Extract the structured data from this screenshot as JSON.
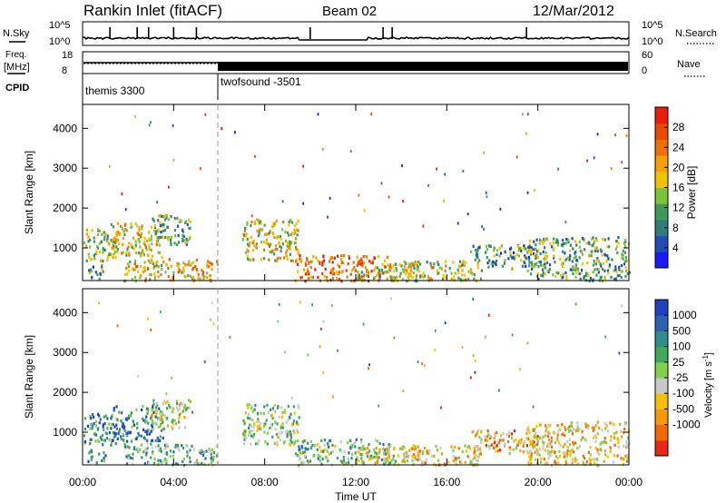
{
  "header": {
    "title": "Rankin Inlet (fitACF)",
    "beam": "Beam 02",
    "date": "12/Mar/2012"
  },
  "panels": {
    "nsky": {
      "left_label": "N.Sky",
      "right_label": "N.Search",
      "left_ticks": [
        "10^5",
        "10^0"
      ],
      "right_ticks": [
        "10^5",
        "10^0"
      ]
    },
    "freq": {
      "left_label_line1": "Freq.",
      "left_label_line2": "[MHz]",
      "right_label": "Nave",
      "left_ticks": [
        "18",
        "8"
      ],
      "right_ticks": [
        "60",
        "0"
      ]
    },
    "cpid": {
      "label": "CPID",
      "programs": [
        {
          "name": "themis 3300",
          "start_hour": 0
        },
        {
          "name": "twofsound -3501",
          "start_hour": 6
        }
      ]
    }
  },
  "chart_data": [
    {
      "type": "heatmap",
      "name": "power",
      "ylabel": "Slant Range [km]",
      "xlabel": "",
      "ylim": [
        180,
        4600
      ],
      "yticks": [
        "1000",
        "2000",
        "3000",
        "4000"
      ],
      "xlim": [
        0,
        24
      ],
      "colorbar": {
        "label": "Power [dB]",
        "ticks": [
          "4",
          "8",
          "12",
          "16",
          "20",
          "24",
          "28"
        ],
        "colors": [
          "#1a1aff",
          "#1f4fb5",
          "#2e7d7a",
          "#3f9a5a",
          "#7ac43a",
          "#f2c200",
          "#f5a000",
          "#f07000",
          "#ec4a00",
          "#e81d0a"
        ]
      },
      "regions": [
        {
          "t0": 0.0,
          "t1": 1.5,
          "r0": 700,
          "r1": 1500,
          "v": 0.45
        },
        {
          "t0": 1.2,
          "t1": 3.5,
          "r0": 800,
          "r1": 1700,
          "v": 0.55
        },
        {
          "t0": 3.0,
          "t1": 4.7,
          "r0": 1100,
          "r1": 1850,
          "v": 0.35
        },
        {
          "t0": 0.2,
          "t1": 1.0,
          "r0": 250,
          "r1": 600,
          "v": 0.3
        },
        {
          "t0": 1.8,
          "t1": 5.9,
          "r0": 200,
          "r1": 750,
          "v": 0.6
        },
        {
          "t0": 7.0,
          "t1": 9.5,
          "r0": 700,
          "r1": 1750,
          "v": 0.55
        },
        {
          "t0": 9.3,
          "t1": 13.5,
          "r0": 200,
          "r1": 850,
          "v": 0.8
        },
        {
          "t0": 12.0,
          "t1": 15.0,
          "r0": 200,
          "r1": 650,
          "v": 0.5
        },
        {
          "t0": 14.0,
          "t1": 17.5,
          "r0": 200,
          "r1": 700,
          "v": 0.5
        },
        {
          "t0": 17.0,
          "t1": 20.0,
          "r0": 500,
          "r1": 1100,
          "v": 0.3
        },
        {
          "t0": 19.5,
          "t1": 24.0,
          "r0": 200,
          "r1": 1300,
          "v": 0.35
        }
      ]
    },
    {
      "type": "heatmap",
      "name": "velocity",
      "ylabel": "Slant Range [km]",
      "xlabel": "Time UT",
      "ylim": [
        180,
        4600
      ],
      "yticks": [
        "1000",
        "2000",
        "3000",
        "4000"
      ],
      "xlim": [
        0,
        24
      ],
      "xticks": [
        "00:00",
        "04:00",
        "08:00",
        "12:00",
        "16:00",
        "20:00",
        "00:00"
      ],
      "colorbar": {
        "label": "Velocity  [m s",
        "label_sup": "-1",
        "label_end": "]",
        "ticks": [
          "1000",
          "500",
          "100",
          "25",
          "-25",
          "-100",
          "-500",
          "-1000"
        ],
        "colors": [
          "#2040c0",
          "#2a63b4",
          "#2f8e8a",
          "#3fa85a",
          "#7fd04a",
          "#c8c8c8",
          "#f5c000",
          "#f59a00",
          "#f06a00",
          "#e82810"
        ]
      },
      "regions": [
        {
          "t0": 0.0,
          "t1": 1.5,
          "r0": 700,
          "r1": 1500,
          "v": 0.25
        },
        {
          "t0": 1.2,
          "t1": 3.5,
          "r0": 800,
          "r1": 1700,
          "v": 0.2
        },
        {
          "t0": 3.0,
          "t1": 4.7,
          "r0": 1100,
          "r1": 1850,
          "v": 0.55
        },
        {
          "t0": 0.2,
          "t1": 1.0,
          "r0": 250,
          "r1": 600,
          "v": 0.3
        },
        {
          "t0": 1.8,
          "t1": 5.9,
          "r0": 200,
          "r1": 750,
          "v": 0.35
        },
        {
          "t0": 7.0,
          "t1": 9.5,
          "r0": 700,
          "r1": 1750,
          "v": 0.45
        },
        {
          "t0": 9.3,
          "t1": 13.5,
          "r0": 200,
          "r1": 850,
          "v": 0.4
        },
        {
          "t0": 12.0,
          "t1": 15.0,
          "r0": 200,
          "r1": 650,
          "v": 0.55
        },
        {
          "t0": 14.0,
          "t1": 17.5,
          "r0": 200,
          "r1": 700,
          "v": 0.65
        },
        {
          "t0": 17.0,
          "t1": 20.0,
          "r0": 500,
          "r1": 1100,
          "v": 0.7
        },
        {
          "t0": 19.5,
          "t1": 24.0,
          "r0": 200,
          "r1": 1300,
          "v": 0.65
        }
      ]
    }
  ]
}
